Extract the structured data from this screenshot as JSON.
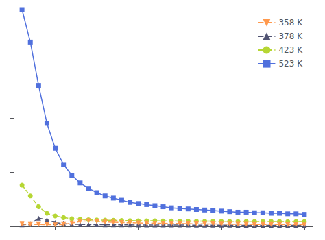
{
  "chart_data": {
    "type": "line",
    "x": [
      1,
      2,
      3,
      4,
      5,
      6,
      7,
      8,
      9,
      10,
      11,
      12,
      13,
      14,
      15,
      16,
      17,
      18,
      19,
      20,
      21,
      22,
      23,
      24,
      25,
      26,
      27,
      28,
      29,
      30,
      31,
      32,
      33,
      34,
      35
    ],
    "series": [
      {
        "name": "523 K",
        "marker": "square",
        "line_style": "solid",
        "values": [
          200,
          170,
          130,
          95,
          72,
          57,
          47,
          40,
          35,
          31,
          28,
          26,
          24,
          22,
          21,
          20,
          19,
          18,
          17,
          16.5,
          16,
          15.5,
          15,
          14.5,
          14,
          13.5,
          13,
          13,
          12.5,
          12.5,
          12,
          12,
          11.5,
          11.5,
          11
        ]
      },
      {
        "name": "423 K",
        "marker": "circle",
        "line_style": "dashed",
        "values": [
          38,
          28,
          18,
          12,
          9.5,
          8.0,
          7.0,
          6.5,
          6.0,
          5.8,
          5.6,
          5.5,
          5.3,
          5.2,
          5.1,
          5.0,
          5.0,
          4.9,
          4.9,
          4.8,
          4.8,
          4.7,
          4.7,
          4.7,
          4.6,
          4.6,
          4.6,
          4.6,
          4.5,
          4.5,
          4.5,
          4.5,
          4.4,
          4.4,
          4.4
        ]
      },
      {
        "name": "378 K",
        "marker": "triangle-up",
        "line_style": "dashed",
        "values": [
          1.5,
          2.0,
          7.5,
          6.0,
          3.5,
          2.5,
          2.0,
          1.8,
          1.7,
          1.6,
          1.5,
          1.5,
          1.4,
          1.4,
          1.3,
          1.3,
          1.3,
          1.2,
          1.2,
          1.2,
          1.2,
          1.1,
          1.1,
          1.1,
          1.1,
          1.1,
          1.0,
          1.0,
          1.0,
          1.0,
          1.0,
          1.0,
          1.0,
          1.0,
          1.0
        ]
      },
      {
        "name": "358 K",
        "marker": "triangle-down",
        "line_style": "dashed",
        "values": [
          2.0,
          1.8,
          1.7,
          1.6,
          1.5,
          1.8,
          3.0,
          4.5,
          5.0,
          4.5,
          4.0,
          3.8,
          3.5,
          3.3,
          3.2,
          3.0,
          2.9,
          2.8,
          2.7,
          2.6,
          2.5,
          2.4,
          2.3,
          2.2,
          2.1,
          2.0,
          1.9,
          1.9,
          1.8,
          1.8,
          1.7,
          1.7,
          1.6,
          1.6,
          1.5
        ]
      }
    ],
    "xlim": [
      0,
      36
    ],
    "xticks": [
      0,
      5,
      10,
      15,
      20,
      25,
      30,
      35
    ],
    "ylim": [
      0,
      200
    ],
    "yticks": [
      0,
      50,
      100,
      150,
      200
    ],
    "tick_labels": false,
    "grid": false,
    "legend": "upper right"
  }
}
